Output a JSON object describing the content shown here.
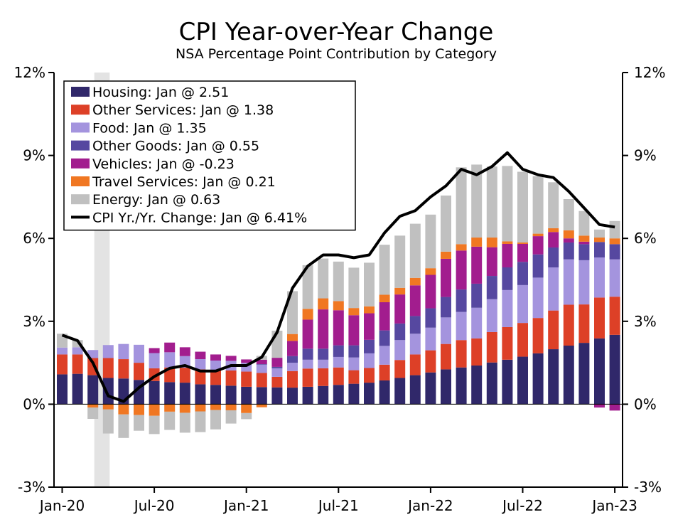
{
  "chart_data": {
    "type": "bar",
    "title": "CPI Year-over-Year Change",
    "subtitle": "NSA Percentage Point Contribution by Category",
    "xlabel": "",
    "ylabel": "",
    "ylim": [
      -3,
      12
    ],
    "yticks": [
      "12%",
      "9%",
      "6%",
      "3%",
      "0%",
      "-3%"
    ],
    "ytick_values": [
      12,
      9,
      6,
      3,
      0,
      -3
    ],
    "xtick_labels": [
      "Jan-20",
      "Jul-20",
      "Jan-21",
      "Jul-21",
      "Jan-22",
      "Jul-22",
      "Jan-23"
    ],
    "xtick_indices": [
      0,
      6,
      12,
      18,
      24,
      30,
      36
    ],
    "categories": [
      "Jan-20",
      "Feb-20",
      "Mar-20",
      "Apr-20",
      "May-20",
      "Jun-20",
      "Jul-20",
      "Aug-20",
      "Sep-20",
      "Oct-20",
      "Nov-20",
      "Dec-20",
      "Jan-21",
      "Feb-21",
      "Mar-21",
      "Apr-21",
      "May-21",
      "Jun-21",
      "Jul-21",
      "Aug-21",
      "Sep-21",
      "Oct-21",
      "Nov-21",
      "Dec-21",
      "Jan-22",
      "Feb-22",
      "Mar-22",
      "Apr-22",
      "May-22",
      "Jun-22",
      "Jul-22",
      "Aug-22",
      "Sep-22",
      "Oct-22",
      "Nov-22",
      "Dec-22",
      "Jan-23"
    ],
    "recession_shading": {
      "start_index": 2,
      "end_index": 3
    },
    "series": [
      {
        "name": "Housing",
        "legend": "Housing: Jan @ 2.51",
        "color": "#30286a",
        "values": [
          1.08,
          1.1,
          1.05,
          0.95,
          0.93,
          0.88,
          0.84,
          0.8,
          0.78,
          0.72,
          0.7,
          0.67,
          0.63,
          0.62,
          0.61,
          0.6,
          0.63,
          0.66,
          0.7,
          0.74,
          0.78,
          0.86,
          0.95,
          1.05,
          1.15,
          1.26,
          1.33,
          1.4,
          1.51,
          1.61,
          1.72,
          1.84,
          1.99,
          2.12,
          2.22,
          2.38,
          2.51
        ]
      },
      {
        "name": "Other Services",
        "legend": "Other Services: Jan @ 1.38",
        "color": "#dd4027",
        "values": [
          0.72,
          0.7,
          0.62,
          0.72,
          0.7,
          0.62,
          0.46,
          0.53,
          0.54,
          0.54,
          0.52,
          0.55,
          0.55,
          0.51,
          0.38,
          0.6,
          0.66,
          0.64,
          0.63,
          0.49,
          0.53,
          0.57,
          0.65,
          0.75,
          0.8,
          0.92,
          0.99,
          0.98,
          1.1,
          1.18,
          1.22,
          1.28,
          1.4,
          1.48,
          1.39,
          1.48,
          1.38
        ]
      },
      {
        "name": "Food",
        "legend": "Food: Jan @ 1.35",
        "color": "#a494de",
        "values": [
          0.25,
          0.26,
          0.29,
          0.47,
          0.55,
          0.65,
          0.55,
          0.55,
          0.42,
          0.37,
          0.36,
          0.35,
          0.32,
          0.3,
          0.31,
          0.3,
          0.32,
          0.31,
          0.38,
          0.46,
          0.53,
          0.68,
          0.72,
          0.75,
          0.82,
          0.96,
          1.02,
          1.11,
          1.19,
          1.34,
          1.37,
          1.46,
          1.56,
          1.64,
          1.6,
          1.45,
          1.35
        ]
      },
      {
        "name": "Other Goods",
        "legend": "Other Goods: Jan @ 0.55",
        "color": "#5648a0",
        "values": [
          0.0,
          0.0,
          0.0,
          0.0,
          0.0,
          0.0,
          0.0,
          0.0,
          0.0,
          0.0,
          0.0,
          0.0,
          0.0,
          0.02,
          0.05,
          0.24,
          0.4,
          0.4,
          0.42,
          0.44,
          0.49,
          0.56,
          0.6,
          0.64,
          0.7,
          0.74,
          0.81,
          0.87,
          0.84,
          0.82,
          0.84,
          0.84,
          0.72,
          0.61,
          0.58,
          0.56,
          0.55
        ]
      },
      {
        "name": "Vehicles",
        "legend": "Vehicles: Jan @ -0.23",
        "color": "#a21d8e",
        "values": [
          0.0,
          0.0,
          0.0,
          0.0,
          0.0,
          0.0,
          0.18,
          0.35,
          0.32,
          0.27,
          0.22,
          0.18,
          0.12,
          0.16,
          0.33,
          0.55,
          1.05,
          1.42,
          1.27,
          1.09,
          0.96,
          1.02,
          1.05,
          1.11,
          1.21,
          1.38,
          1.41,
          1.34,
          1.04,
          0.85,
          0.65,
          0.66,
          0.56,
          0.15,
          0.09,
          -0.12,
          -0.23
        ]
      },
      {
        "name": "Travel Services",
        "legend": "Travel Services: Jan @ 0.21",
        "color": "#f07722",
        "values": [
          0.0,
          0.0,
          -0.12,
          -0.19,
          -0.37,
          -0.39,
          -0.42,
          -0.27,
          -0.31,
          -0.26,
          -0.21,
          -0.22,
          -0.32,
          -0.11,
          0.0,
          0.25,
          0.39,
          0.4,
          0.33,
          0.26,
          0.25,
          0.27,
          0.24,
          0.27,
          0.24,
          0.26,
          0.23,
          0.33,
          0.35,
          0.09,
          0.05,
          0.09,
          0.14,
          0.29,
          0.22,
          0.16,
          0.21
        ]
      },
      {
        "name": "Energy",
        "legend": "Energy: Jan @ 0.63",
        "color": "#c0c0c0",
        "values": [
          0.5,
          0.26,
          -0.41,
          -0.87,
          -0.85,
          -0.57,
          -0.66,
          -0.66,
          -0.72,
          -0.75,
          -0.7,
          -0.48,
          -0.22,
          0.14,
          0.98,
          1.55,
          1.58,
          1.44,
          1.43,
          1.46,
          1.58,
          1.81,
          1.89,
          1.96,
          1.94,
          2.03,
          2.78,
          2.64,
          2.57,
          2.73,
          2.56,
          2.08,
          1.66,
          1.13,
          0.89,
          0.29,
          0.63
        ]
      }
    ],
    "line": {
      "name": "CPI Yr./Yr. Change",
      "legend": "CPI Yr./Yr. Change: Jan @ 6.41%",
      "color": "#000000",
      "values": [
        2.5,
        2.3,
        1.5,
        0.3,
        0.1,
        0.6,
        1.0,
        1.3,
        1.4,
        1.2,
        1.2,
        1.4,
        1.4,
        1.7,
        2.6,
        4.2,
        5.0,
        5.4,
        5.4,
        5.3,
        5.4,
        6.2,
        6.8,
        7.0,
        7.5,
        7.9,
        8.5,
        8.3,
        8.6,
        9.1,
        8.5,
        8.3,
        8.2,
        7.7,
        7.1,
        6.5,
        6.41
      ]
    }
  }
}
